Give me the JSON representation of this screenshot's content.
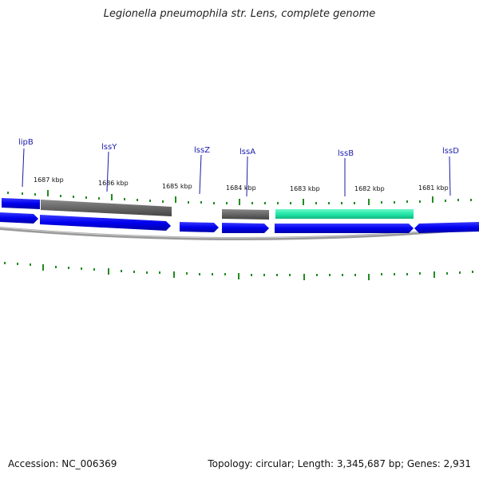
{
  "title": "Legionella pneumophila str. Lens, complete genome",
  "footer": {
    "accession": "Accession: NC_006369",
    "summary": "Topology: circular; Length: 3,345,687 bp; Genes: 2,931"
  },
  "colors": {
    "gene_blue": "#0000ee",
    "gene_gray": "#666666",
    "gene_green": "#22e8a8",
    "tick_green": "#228b22",
    "label_blue": "#1a1aaa",
    "backbone": "#888888"
  },
  "kbp_labels": [
    "1687 kbp",
    "1686 kbp",
    "1685 kbp",
    "1684 kbp",
    "1683 kbp",
    "1682 kbp",
    "1681 kbp"
  ],
  "gene_labels": [
    "lipB",
    "lssY",
    "lssZ",
    "lssA",
    "lssB",
    "lssD"
  ]
}
